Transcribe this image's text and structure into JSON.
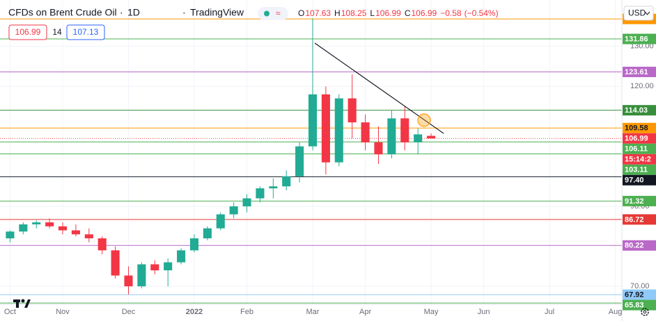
{
  "header": {
    "symbol": "CFDs on Brent Crude Oil",
    "interval": "1D",
    "source": "TradingView",
    "ohlc": [
      {
        "key": "O",
        "value": 107.63
      },
      {
        "key": "H",
        "value": 108.25
      },
      {
        "key": "L",
        "value": 106.99
      },
      {
        "key": "C",
        "value": 106.99
      }
    ],
    "change": {
      "value": -0.58,
      "label": "−0.58"
    },
    "change_pct": {
      "value": -0.54,
      "label": "(−0.54%)"
    }
  },
  "quote": {
    "sell": 106.99,
    "spread": 14,
    "buy": 107.13
  },
  "currency": "USD",
  "chart_data": {
    "type": "candlestick",
    "categories": [
      "Oct",
      null,
      null,
      null,
      "Nov",
      null,
      null,
      null,
      null,
      "Dec",
      null,
      null,
      null,
      null,
      "2022",
      null,
      null,
      null,
      "Feb",
      null,
      null,
      null,
      null,
      "Mar",
      null,
      null,
      null,
      "Apr",
      null,
      null,
      null,
      null,
      "May",
      null,
      null,
      null,
      "Jun",
      null,
      null,
      null,
      null,
      "Jul",
      null,
      null,
      null,
      null,
      "Aug"
    ],
    "open": [
      82,
      83.7,
      85.5,
      86,
      85,
      84,
      83,
      82,
      79,
      72.7,
      70,
      75.5,
      74,
      76,
      79,
      82,
      84.5,
      88,
      90,
      92,
      94.5,
      95,
      97.5,
      105,
      118,
      101,
      117,
      111,
      106,
      103,
      112,
      106,
      107.63,
      null,
      null,
      null,
      null,
      null,
      null,
      null,
      null,
      null,
      null,
      null,
      null,
      null,
      null
    ],
    "high": [
      84,
      86,
      86.5,
      87,
      86,
      85.5,
      84.5,
      82.5,
      80,
      75,
      76,
      76.5,
      77,
      79.5,
      83,
      85,
      88.5,
      91,
      93,
      95,
      97,
      99,
      106,
      137,
      120,
      118,
      123,
      113,
      110,
      114,
      115,
      109.5,
      108.25,
      null,
      null,
      null,
      null,
      null,
      null,
      null,
      null,
      null,
      null,
      null,
      null,
      null,
      null
    ],
    "low": [
      81,
      83,
      84.5,
      84.5,
      83,
      82.5,
      81,
      78,
      72,
      68,
      69.5,
      73,
      70,
      75.5,
      78.5,
      81.5,
      84,
      87,
      88.5,
      91,
      92,
      94,
      96,
      104,
      98,
      100,
      107,
      104,
      100.6,
      102,
      104,
      103,
      106.99,
      null,
      null,
      null,
      null,
      null,
      null,
      null,
      null,
      null,
      null,
      null,
      null,
      null,
      null
    ],
    "close": [
      83.7,
      85.5,
      86,
      85,
      84,
      83,
      82,
      79,
      72.7,
      70,
      75.5,
      74,
      76,
      79,
      82,
      84.5,
      88,
      90,
      92,
      94.5,
      95,
      97.5,
      105,
      118,
      101,
      117,
      111,
      106,
      103,
      112,
      106,
      108,
      106.99,
      null,
      null,
      null,
      null,
      null,
      null,
      null,
      null,
      null,
      null,
      null,
      null,
      null,
      null
    ],
    "up_color": "#22ab94",
    "down_color": "#f23645",
    "ylim": [
      65.5,
      141.6
    ],
    "yticks": [
      {
        "value": 70,
        "label": "70.00"
      },
      {
        "value": 90,
        "label": "90.00"
      },
      {
        "value": 120,
        "label": "120.00"
      },
      {
        "value": 130,
        "label": "130.00"
      }
    ],
    "grid": true,
    "levels": [
      {
        "value": 136.86,
        "color": "#ff9800"
      },
      {
        "value": 131.86,
        "color": "#4caf50"
      },
      {
        "value": 123.61,
        "color": "#ba68c8"
      },
      {
        "value": 114.03,
        "color": "#388e3c"
      },
      {
        "value": 109.58,
        "color": "#ff9800"
      },
      {
        "value": 106.11,
        "color": "#4caf50"
      },
      {
        "value": 103.11,
        "color": "#4caf50"
      },
      {
        "value": 97.4,
        "label": "97.40",
        "color": "#131722"
      },
      {
        "value": 91.32,
        "color": "#4caf50"
      },
      {
        "value": 86.72,
        "color": "#e53935"
      },
      {
        "value": 80.22,
        "color": "#ba68c8"
      },
      {
        "value": 67.92,
        "color": "#90caf9"
      },
      {
        "value": 65.83,
        "color": "#4caf50"
      }
    ],
    "last_price": {
      "value": 106.99,
      "color": "#f23645"
    },
    "countdown": "15:14:2"
  }
}
